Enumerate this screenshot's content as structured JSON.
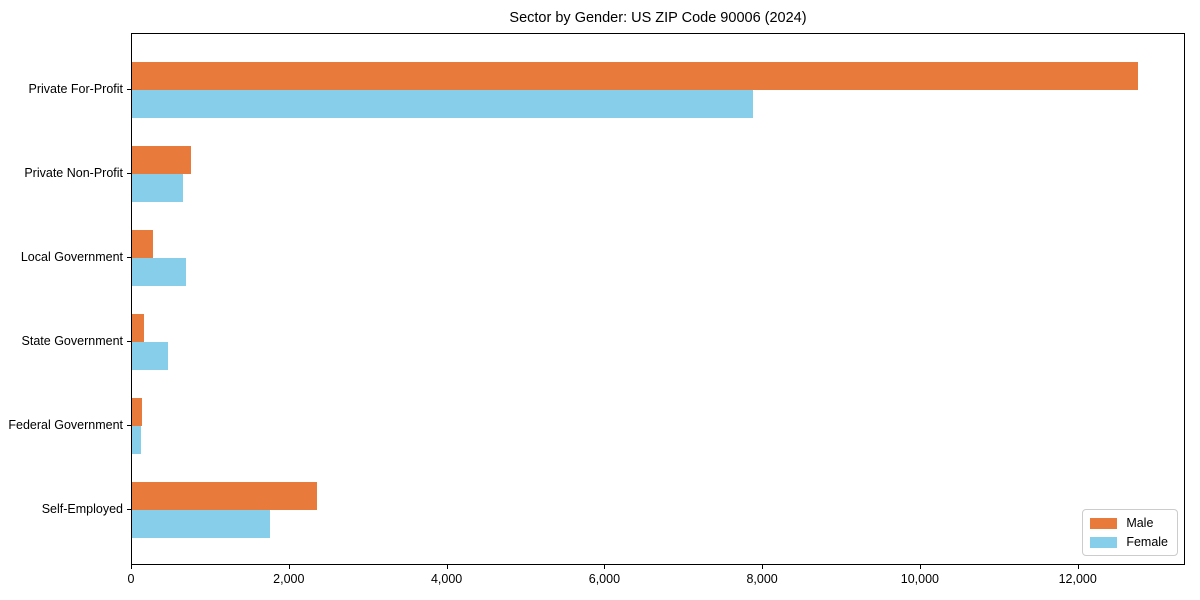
{
  "chart_data": {
    "type": "bar",
    "orientation": "horizontal",
    "title": "Sector by Gender: US ZIP Code 90006 (2024)",
    "xlabel": "",
    "ylabel": "",
    "categories": [
      "Private For-Profit",
      "Private Non-Profit",
      "Local Government",
      "State Government",
      "Federal Government",
      "Self-Employed"
    ],
    "series": [
      {
        "name": "Male",
        "color": "#E87A3C",
        "values": [
          12750,
          750,
          260,
          150,
          130,
          2340
        ]
      },
      {
        "name": "Female",
        "color": "#87CEEB",
        "values": [
          7870,
          650,
          690,
          460,
          110,
          1750
        ]
      }
    ],
    "xlim": [
      0,
      13360
    ],
    "xticks": [
      0,
      2000,
      4000,
      6000,
      8000,
      10000,
      12000
    ],
    "xtick_labels": [
      "0",
      "2,000",
      "4,000",
      "6,000",
      "8,000",
      "10,000",
      "12,000"
    ],
    "grid": false,
    "legend_position": "lower right",
    "plot_background": "#ffffff",
    "spine_color": "#000000"
  }
}
